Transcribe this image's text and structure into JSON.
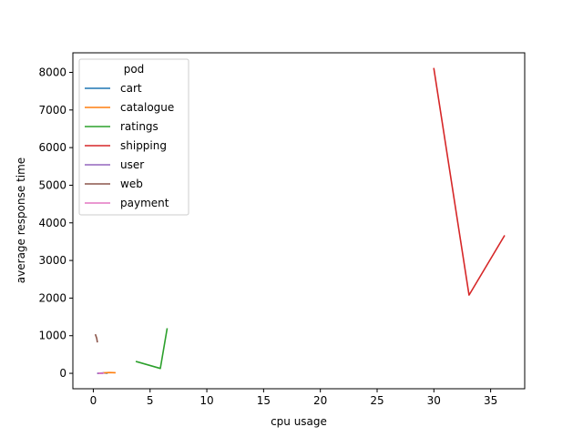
{
  "chart_data": {
    "type": "line",
    "title": "",
    "xlabel": "cpu usage",
    "ylabel": "average response time",
    "xlim": [
      -1.8,
      38.0
    ],
    "ylim": [
      -410,
      8520
    ],
    "xticks": [
      0,
      5,
      10,
      15,
      20,
      25,
      30,
      35
    ],
    "yticks": [
      0,
      1000,
      2000,
      3000,
      4000,
      5000,
      6000,
      7000,
      8000
    ],
    "grid": false,
    "legend": {
      "title": "pod",
      "placement": "upper-left"
    },
    "series": [
      {
        "name": "cart",
        "color": "#1f77b4",
        "x": [
          0.45,
          0.9,
          1.2
        ],
        "y": [
          0,
          10,
          5
        ]
      },
      {
        "name": "catalogue",
        "color": "#ff7f0e",
        "x": [
          0.9,
          1.4,
          1.9
        ],
        "y": [
          10,
          20,
          15
        ]
      },
      {
        "name": "ratings",
        "color": "#2ca02c",
        "x": [
          3.8,
          5.9,
          6.5
        ],
        "y": [
          310,
          130,
          1180
        ]
      },
      {
        "name": "shipping",
        "color": "#d62728",
        "x": [
          30.0,
          33.1,
          36.2
        ],
        "y": [
          8100,
          2080,
          3650
        ]
      },
      {
        "name": "user",
        "color": "#9467bd",
        "x": [
          0.4,
          0.6,
          0.8
        ],
        "y": [
          0,
          5,
          0
        ]
      },
      {
        "name": "web",
        "color": "#8c564b",
        "x": [
          0.2,
          0.3,
          0.35
        ],
        "y": [
          1020,
          930,
          840
        ]
      },
      {
        "name": "payment",
        "color": "#e377c2",
        "x": [
          0.5,
          0.7,
          0.9
        ],
        "y": [
          5,
          0,
          5
        ]
      }
    ]
  }
}
